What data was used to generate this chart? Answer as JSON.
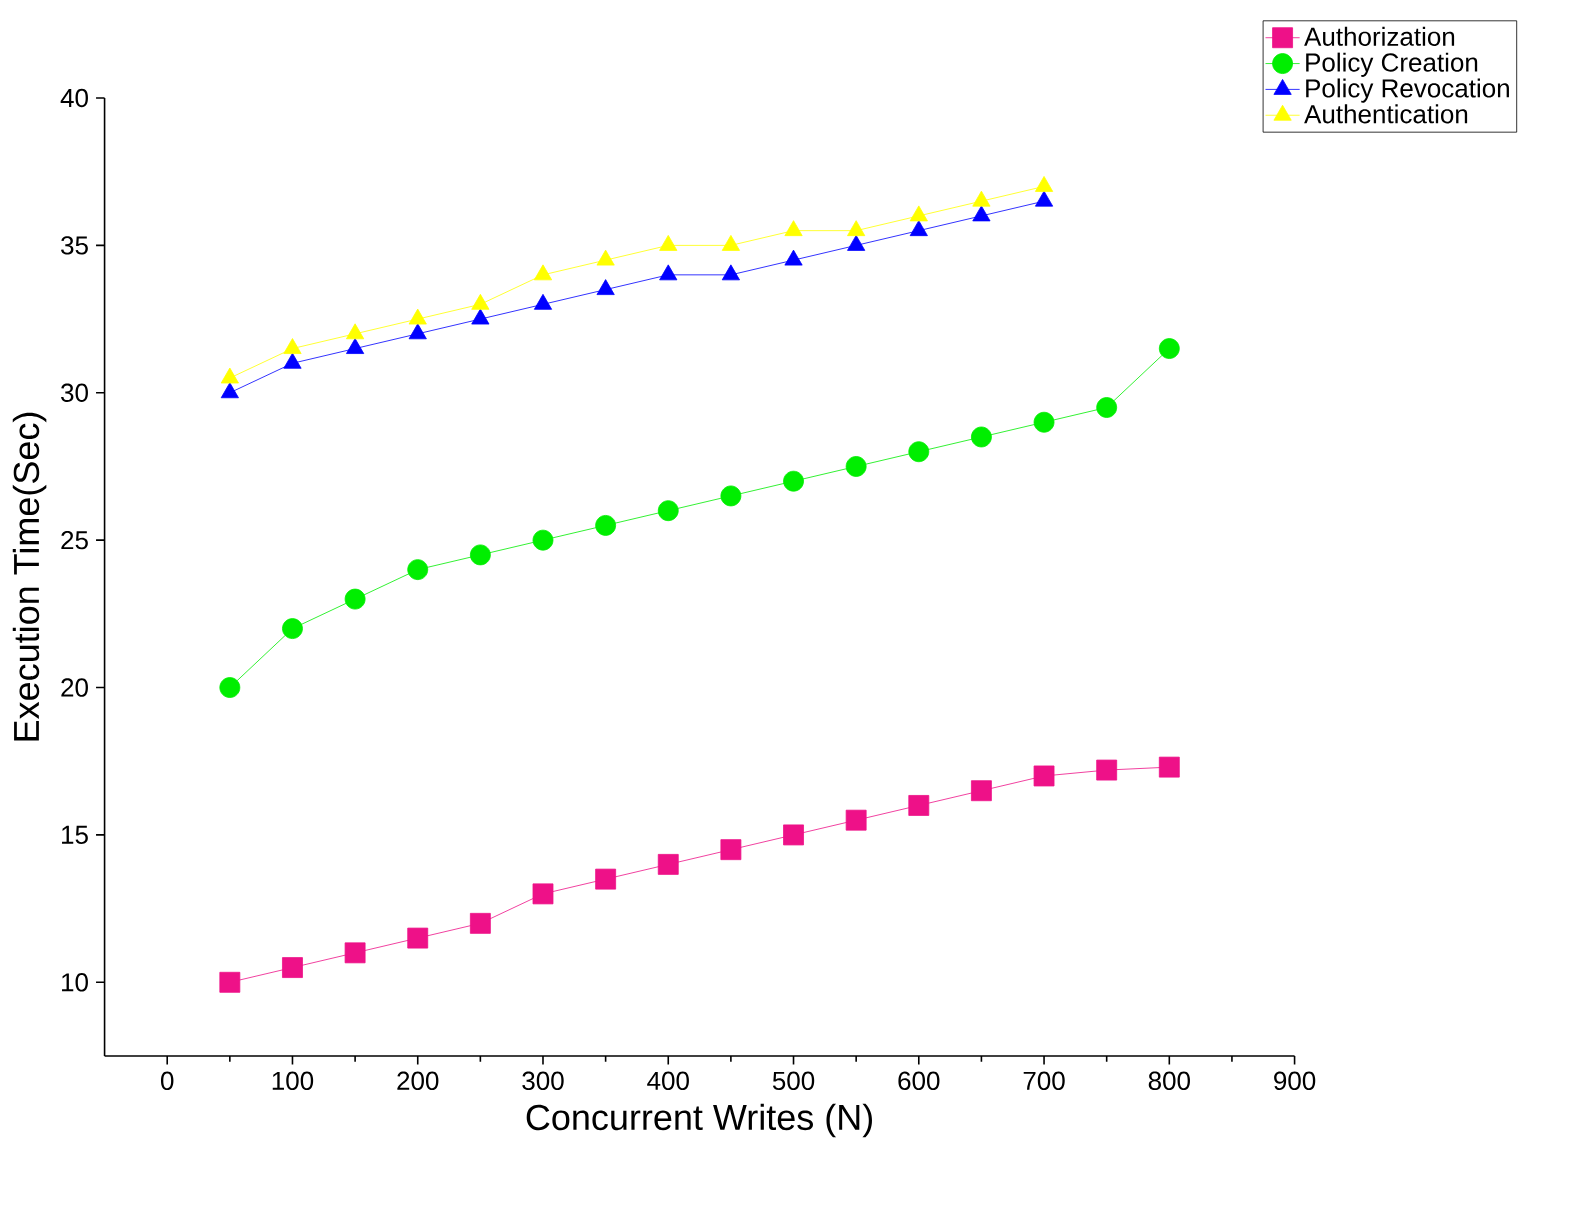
{
  "chart_data": {
    "type": "line",
    "xlabel": "Concurrent Writes (N)",
    "ylabel": "Execution Time(Sec)",
    "x": [
      50,
      100,
      150,
      200,
      250,
      300,
      350,
      400,
      450,
      500,
      550,
      600,
      650,
      700,
      750,
      800
    ],
    "xlim": [
      -50,
      900
    ],
    "xticks": [
      0,
      100,
      200,
      300,
      400,
      500,
      600,
      700,
      800,
      900
    ],
    "ylim": [
      7.5,
      40
    ],
    "yticks": [
      10,
      15,
      20,
      25,
      30,
      35,
      40
    ],
    "legend": "top right",
    "grid": false,
    "series": [
      {
        "name": "Authorization",
        "color": "#ee1188",
        "marker": "square",
        "values": [
          10,
          10.5,
          11,
          11.5,
          12,
          13,
          13.5,
          14,
          14.5,
          15,
          15.5,
          16,
          16.5,
          17,
          17.2,
          17.3
        ]
      },
      {
        "name": "Policy Creation",
        "color": "#00ee00",
        "marker": "circle",
        "values": [
          20,
          22,
          23,
          24,
          24.5,
          25,
          25.5,
          26,
          26.5,
          27,
          27.5,
          28,
          28.5,
          29,
          29.5,
          31.5
        ]
      },
      {
        "name": "Policy Revocation",
        "color": "#0000ff",
        "marker": "triangle",
        "values": [
          30,
          31,
          31.5,
          32,
          32.5,
          33,
          33.5,
          34,
          34,
          34.5,
          35,
          35.5,
          36,
          36.5,
          null,
          null
        ]
      },
      {
        "name": "Authentication",
        "color": "#ffff00",
        "marker": "triangle-down",
        "values": [
          30.5,
          31.5,
          32,
          32.5,
          33,
          34,
          34.5,
          35,
          35,
          35.5,
          35.5,
          36,
          36.5,
          37,
          null,
          null
        ]
      }
    ]
  }
}
